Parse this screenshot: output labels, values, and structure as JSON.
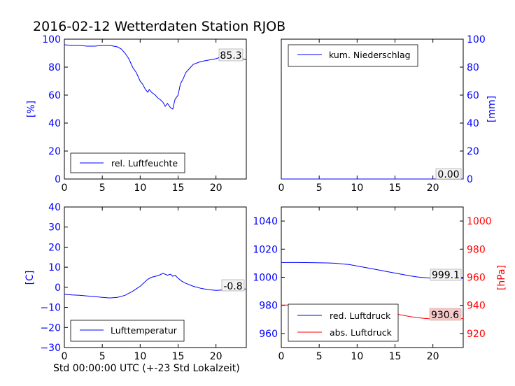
{
  "figure_title": "2016-02-12 Wetterdaten Station RJOB",
  "xlabel": "Std 00:00:00 UTC (+-23 Std Lokalzeit)",
  "colors": {
    "blue": "#0000ff",
    "red": "#ff0000",
    "axis": "#000000",
    "last_box_red_fill": "#f6c9c9"
  },
  "chart_data": [
    {
      "type": "line",
      "panel": "top-left",
      "xlim": [
        0,
        24
      ],
      "x_ticks": [
        0,
        5,
        10,
        15,
        20
      ],
      "ylim": [
        0,
        100
      ],
      "y_ticks": [
        0,
        20,
        40,
        60,
        80,
        100
      ],
      "ylabel": "[%]",
      "ylabel_side": "left",
      "legend_placement": "lower-left",
      "last_value_label": "85.3",
      "grid": false,
      "series": [
        {
          "name": "rel. Luftfeuchte",
          "color": "#0000ff",
          "x": [
            0,
            1,
            2,
            3,
            4,
            5,
            6,
            6.5,
            7,
            7.5,
            8,
            8.5,
            9,
            9.5,
            10,
            10.3,
            10.7,
            11,
            11.2,
            11.5,
            12,
            12.3,
            12.6,
            13,
            13.3,
            13.6,
            14,
            14.3,
            14.6,
            15,
            15.3,
            15.7,
            16,
            16.5,
            17,
            18,
            19,
            20,
            20.5,
            21,
            21.5,
            22,
            22.5,
            23,
            23.5,
            24
          ],
          "y": [
            96,
            95.5,
            95.5,
            95,
            95,
            95.5,
            95.5,
            95,
            94.5,
            93,
            90,
            86,
            80,
            76,
            70,
            68,
            64,
            62,
            64,
            62,
            60,
            58,
            57,
            55,
            52,
            54,
            51,
            50,
            57,
            60,
            68,
            72,
            76,
            79,
            82,
            84,
            85,
            86,
            87,
            88,
            89,
            89.5,
            89,
            88,
            86,
            85.3
          ]
        }
      ]
    },
    {
      "type": "line",
      "panel": "top-right",
      "xlim": [
        0,
        24
      ],
      "x_ticks": [
        0,
        5,
        10,
        15,
        20
      ],
      "ylim": [
        0,
        100
      ],
      "y_ticks": [
        0,
        20,
        40,
        60,
        80,
        100
      ],
      "ylabel": "[mm]",
      "ylabel_side": "right",
      "legend_placement": "top-left",
      "last_value_label": "0.00",
      "grid": false,
      "series": [
        {
          "name": "kum. Niederschlag",
          "color": "#0000ff",
          "x": [
            0,
            24
          ],
          "y": [
            0,
            0
          ]
        }
      ]
    },
    {
      "type": "line",
      "panel": "bottom-left",
      "xlim": [
        0,
        24
      ],
      "x_ticks": [
        0,
        5,
        10,
        15,
        20
      ],
      "ylim": [
        -30,
        40
      ],
      "y_ticks": [
        -30,
        -20,
        -10,
        0,
        10,
        20,
        30,
        40
      ],
      "ylabel": "[C]",
      "ylabel_side": "left",
      "legend_placement": "lower-left",
      "last_value_label": "-0.8",
      "grid": false,
      "series": [
        {
          "name": "Lufttemperatur",
          "color": "#0000ff",
          "x": [
            0,
            1,
            2,
            3,
            4,
            5,
            6,
            7,
            8,
            9,
            10,
            11,
            11.5,
            12,
            12.5,
            13,
            13.3,
            13.6,
            14,
            14.3,
            14.6,
            15,
            15.5,
            16,
            17,
            18,
            19,
            20,
            21,
            22,
            23,
            24
          ],
          "y": [
            -3.5,
            -3.8,
            -4,
            -4.3,
            -4.6,
            -5,
            -5.3,
            -5,
            -4,
            -2,
            0.5,
            4,
            5,
            5.5,
            6,
            7,
            6.5,
            6,
            6.5,
            5.5,
            6,
            4.5,
            3,
            2,
            0.5,
            -0.5,
            -1.2,
            -1.5,
            -1.3,
            -1.2,
            -1,
            -0.8
          ]
        }
      ]
    },
    {
      "type": "line",
      "panel": "bottom-right",
      "xlim": [
        0,
        24
      ],
      "x_ticks": [
        0,
        5,
        10,
        15,
        20
      ],
      "ylim_left": [
        950,
        1050
      ],
      "y_ticks_left": [
        960,
        980,
        1000,
        1020,
        1040
      ],
      "ylim_right": [
        910,
        1010
      ],
      "y_ticks_right": [
        920,
        940,
        960,
        980,
        1000
      ],
      "ylabel_right": "[hPa]",
      "legend_placement": "lower-left",
      "last_value_labels": [
        "999.1",
        "930.6"
      ],
      "grid": false,
      "series": [
        {
          "name": "red. Luftdruck",
          "color": "#0000ff",
          "axis": "left",
          "x": [
            0,
            2,
            4,
            6,
            7,
            8,
            9,
            10,
            11,
            12,
            13,
            14,
            15,
            16,
            17,
            18,
            19,
            20,
            21,
            22,
            23,
            24
          ],
          "y": [
            1010.5,
            1010.5,
            1010.4,
            1010.2,
            1010,
            1009.5,
            1009,
            1008,
            1007,
            1006,
            1005,
            1004,
            1003,
            1002,
            1001,
            1000.2,
            999.7,
            999.3,
            999.1,
            999.2,
            999.1,
            999.1
          ]
        },
        {
          "name": "abs. Luftdruck",
          "color": "#ff0000",
          "axis": "right",
          "x": [
            0,
            2,
            4,
            6,
            7,
            8,
            9,
            10,
            11,
            12,
            13,
            14,
            15,
            16,
            17,
            18,
            19,
            20,
            21,
            22,
            23,
            24
          ],
          "y": [
            940.2,
            940.2,
            940.2,
            939.9,
            939.7,
            939.3,
            939,
            938.5,
            938,
            937.5,
            936.5,
            935.5,
            934,
            933,
            932,
            931.2,
            930.7,
            930.3,
            930.5,
            930.6,
            930.6,
            930.6
          ]
        }
      ]
    }
  ]
}
